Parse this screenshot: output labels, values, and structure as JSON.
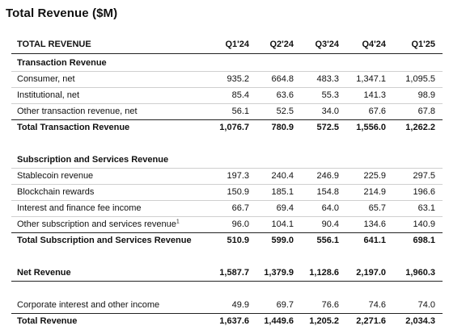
{
  "title": "Total Revenue ($M)",
  "header": {
    "label": "TOTAL REVENUE",
    "columns": [
      "Q1'24",
      "Q2'24",
      "Q3'24",
      "Q4'24",
      "Q1'25"
    ]
  },
  "sections": {
    "transaction": {
      "heading": "Transaction Revenue",
      "rows": [
        {
          "label": "Consumer, net",
          "values": [
            "935.2",
            "664.8",
            "483.3",
            "1,347.1",
            "1,095.5"
          ]
        },
        {
          "label": "Institutional, net",
          "values": [
            "85.4",
            "63.6",
            "55.3",
            "141.3",
            "98.9"
          ]
        },
        {
          "label": "Other transaction revenue, net",
          "values": [
            "56.1",
            "52.5",
            "34.0",
            "67.6",
            "67.8"
          ]
        }
      ],
      "total": {
        "label": "Total Transaction Revenue",
        "values": [
          "1,076.7",
          "780.9",
          "572.5",
          "1,556.0",
          "1,262.2"
        ]
      }
    },
    "subscription": {
      "heading": "Subscription and Services Revenue",
      "rows": [
        {
          "label": "Stablecoin revenue",
          "values": [
            "197.3",
            "240.4",
            "246.9",
            "225.9",
            "297.5"
          ]
        },
        {
          "label": "Blockchain rewards",
          "values": [
            "150.9",
            "185.1",
            "154.8",
            "214.9",
            "196.6"
          ]
        },
        {
          "label": "Interest and finance fee income",
          "values": [
            "66.7",
            "69.4",
            "64.0",
            "65.7",
            "63.1"
          ]
        },
        {
          "label": "Other subscription and services revenue",
          "sup": "1",
          "values": [
            "96.0",
            "104.1",
            "90.4",
            "134.6",
            "140.9"
          ]
        }
      ],
      "total": {
        "label": "Total Subscription and Services Revenue",
        "values": [
          "510.9",
          "599.0",
          "556.1",
          "641.1",
          "698.1"
        ]
      }
    }
  },
  "net_revenue": {
    "label": "Net Revenue",
    "values": [
      "1,587.7",
      "1,379.9",
      "1,128.6",
      "2,197.0",
      "1,960.3"
    ]
  },
  "corporate_interest": {
    "label": "Corporate interest and other income",
    "values": [
      "49.9",
      "69.7",
      "76.6",
      "74.6",
      "74.0"
    ]
  },
  "total_revenue": {
    "label": "Total Revenue",
    "values": [
      "1,637.6",
      "1,449.6",
      "1,205.2",
      "2,271.6",
      "2,034.3"
    ]
  }
}
